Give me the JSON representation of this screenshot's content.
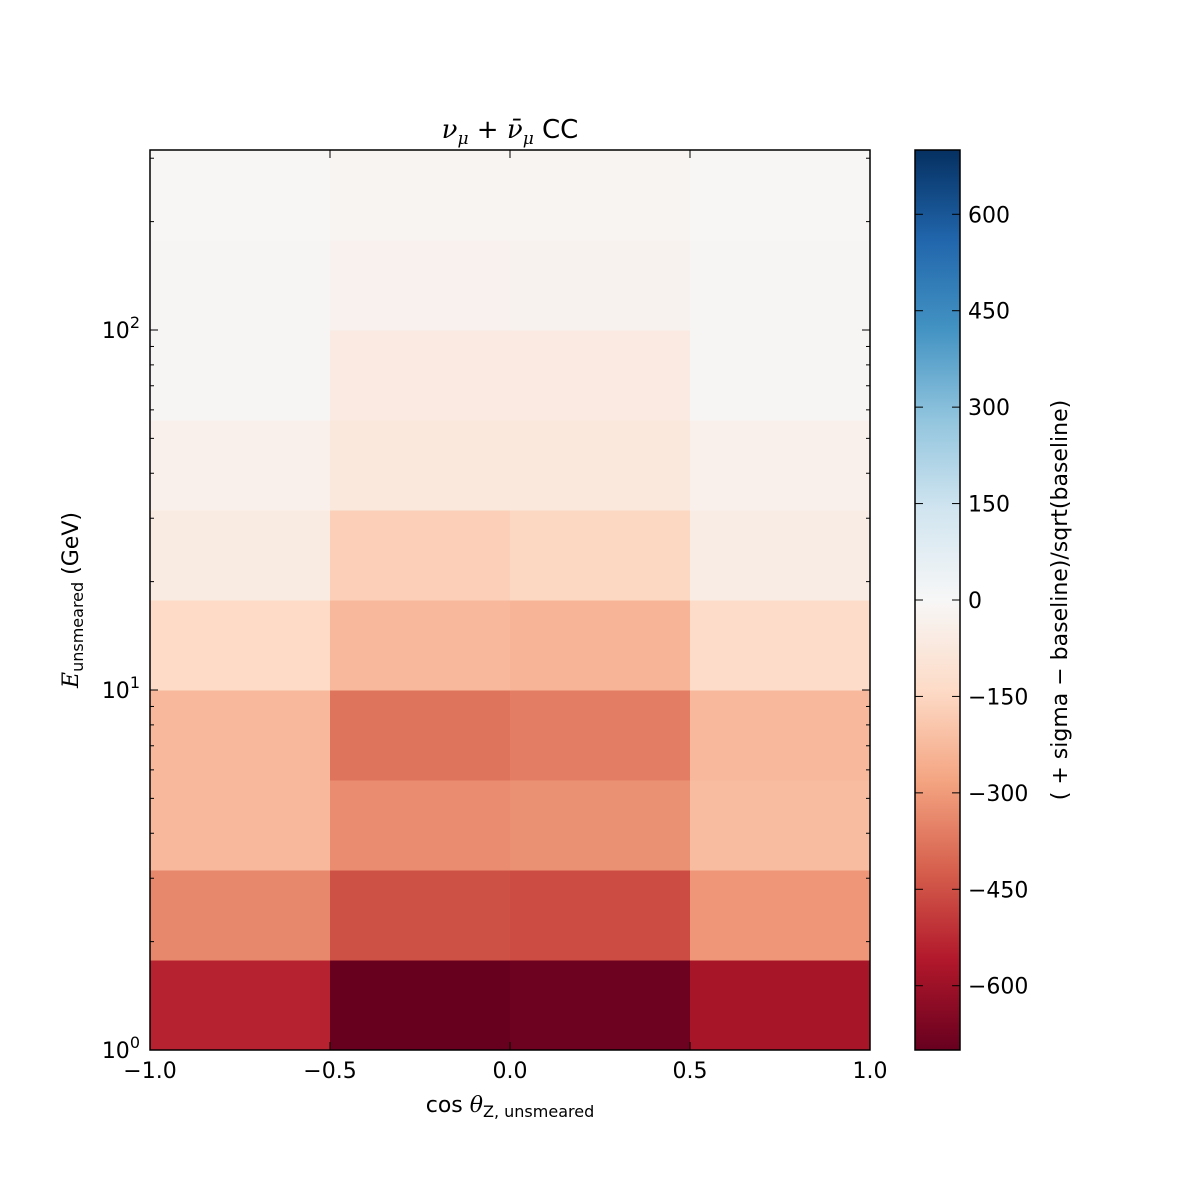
{
  "chart_data": {
    "type": "heatmap",
    "title": {
      "nu": "ν",
      "mu": "μ",
      "plus": " + ",
      "nubar": "ν̄",
      "mu2": "μ",
      "suffix": " CC"
    },
    "xlabel": {
      "prefix": "cos ",
      "theta": "θ",
      "sub": "Z, unsmeared"
    },
    "ylabel": {
      "main": "E",
      "sub": "unsmeared",
      "suffix": " (GeV)"
    },
    "colorbar_label": "( + sigma − baseline)/sqrt(baseline)",
    "x_edges": [
      -1.0,
      -0.5,
      0.0,
      0.5,
      1.0
    ],
    "y_edges": [
      1.0,
      1.778,
      3.162,
      5.623,
      10.0,
      17.78,
      31.62,
      56.23,
      100.0,
      177.8,
      316.2
    ],
    "xlim": [
      -1.0,
      1.0
    ],
    "ylim": [
      1.0,
      316.2
    ],
    "y_scale": "log",
    "x_ticks": [
      -1.0,
      -0.5,
      0.0,
      0.5,
      1.0
    ],
    "x_tick_labels": [
      "−1.0",
      "−0.5",
      "0.0",
      "0.5",
      "1.0"
    ],
    "y_ticks": [
      {
        "value": 1,
        "base": "10",
        "exp": "0"
      },
      {
        "value": 10,
        "base": "10",
        "exp": "1"
      },
      {
        "value": 100,
        "base": "10",
        "exp": "2"
      }
    ],
    "values": [
      [
        -540,
        -700,
        -690,
        -580
      ],
      [
        -340,
        -450,
        -460,
        -310
      ],
      [
        -230,
        -330,
        -320,
        -220
      ],
      [
        -230,
        -380,
        -360,
        -230
      ],
      [
        -140,
        -230,
        -240,
        -130
      ],
      [
        -60,
        -170,
        -150,
        -55
      ],
      [
        -35,
        -75,
        -75,
        -35
      ],
      [
        -10,
        -65,
        -65,
        -10
      ],
      [
        -10,
        -30,
        -25,
        -10
      ],
      [
        -5,
        -15,
        -15,
        -5
      ]
    ],
    "colorbar": {
      "vmin": -700,
      "vmax": 700,
      "ticks": [
        600,
        450,
        300,
        150,
        0,
        -150,
        -300,
        -450,
        -600
      ],
      "tick_labels": [
        "600",
        "450",
        "300",
        "150",
        "0",
        "−150",
        "−300",
        "−450",
        "−600"
      ],
      "colormap": "RdBu",
      "colors": [
        "#67001f",
        "#b2182b",
        "#d6604d",
        "#f4a582",
        "#fddbc7",
        "#f7f7f7",
        "#d1e5f0",
        "#92c5de",
        "#4393c3",
        "#2166ac",
        "#053061"
      ]
    }
  }
}
